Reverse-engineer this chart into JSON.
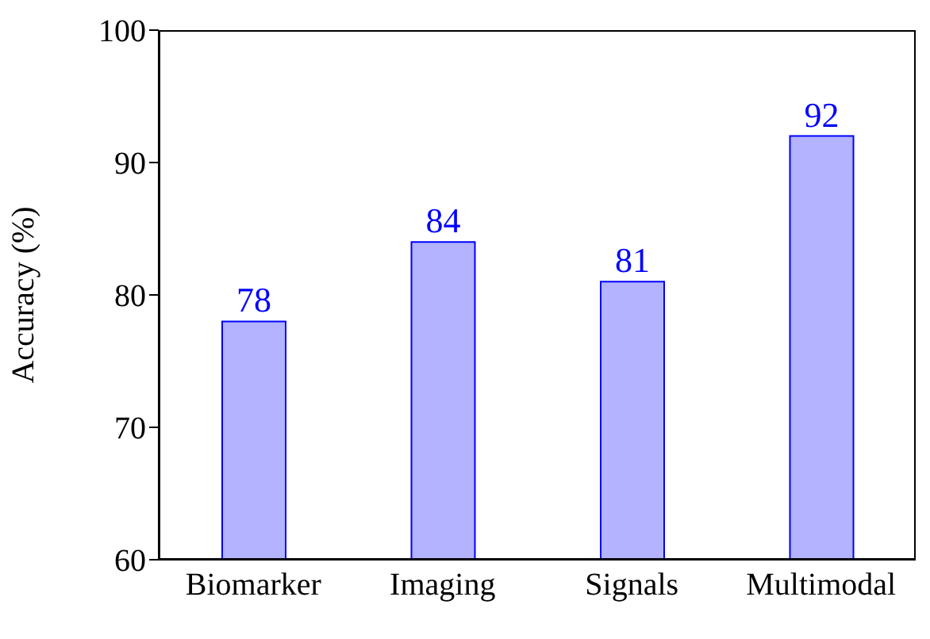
{
  "chart_data": {
    "type": "bar",
    "ylabel": "Accuracy (%)",
    "categories": [
      "Biomarker",
      "Imaging",
      "Signals",
      "Multimodal"
    ],
    "values": [
      78,
      84,
      81,
      92
    ],
    "color": "#b3b3ff",
    "ylim": [
      60,
      100
    ],
    "yticks": [
      60,
      70,
      80,
      90,
      100
    ],
    "data_labels": true
  }
}
